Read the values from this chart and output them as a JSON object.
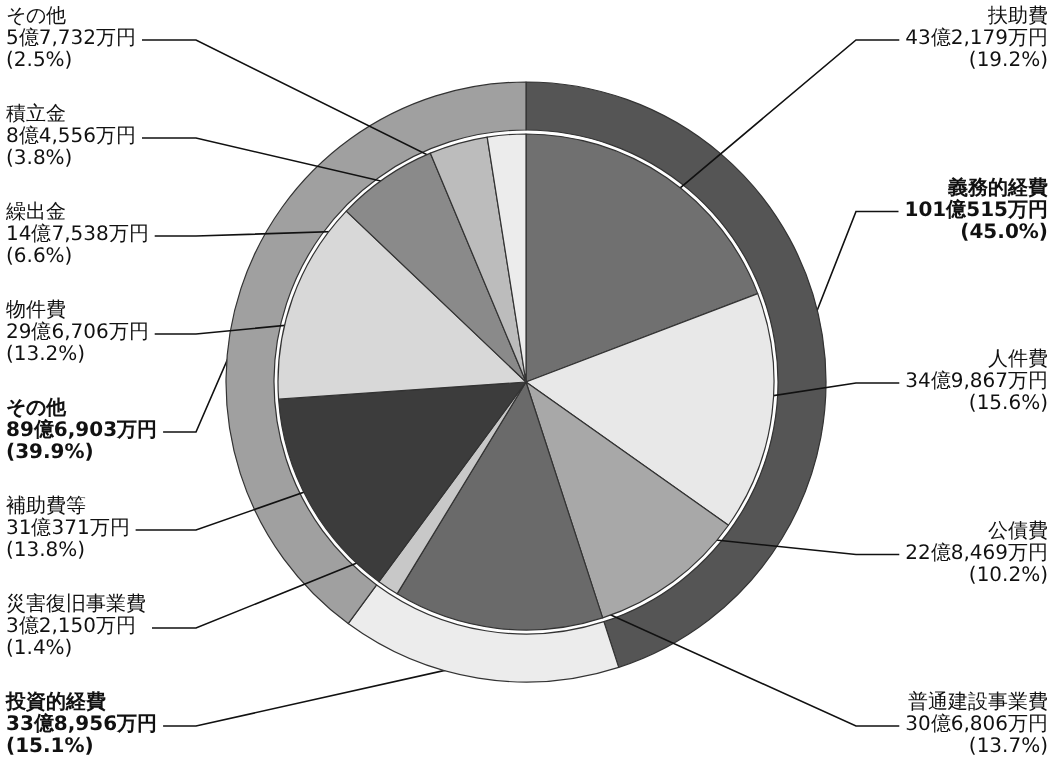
{
  "chart_data": [
    {
      "type": "donut",
      "categories": [
        "義務的経費",
        "投資的経費",
        "その他"
      ],
      "values": [
        45.0,
        15.1,
        39.9
      ],
      "colors": [
        "#555555",
        "#ececec",
        "#a0a0a0"
      ],
      "value_labels": [
        "101億515万円 (45.0%)",
        "33億8,956万円 (15.1%)",
        "89億6,903万円 (39.9%)"
      ]
    },
    {
      "type": "pie",
      "categories": [
        "扶助費",
        "人件費",
        "公債費",
        "普通建設事業費",
        "災害復旧事業費",
        "補助費等",
        "物件費",
        "繰出金",
        "積立金",
        "その他"
      ],
      "values": [
        19.2,
        15.6,
        10.2,
        13.7,
        1.4,
        13.8,
        13.2,
        6.6,
        3.8,
        2.5
      ],
      "colors": [
        "#707070",
        "#e8e8e8",
        "#a8a8a8",
        "#6a6a6a",
        "#c8c8c8",
        "#3c3c3c",
        "#d8d8d8",
        "#8a8a8a",
        "#bcbcbc",
        "#ececec"
      ],
      "value_labels": [
        "43億2,179万円 (19.2%)",
        "34億9,867万円 (15.6%)",
        "22億8,469万円 (10.2%)",
        "30億6,806万円 (13.7%)",
        "3億2,150万円 (1.4%)",
        "31億371万円 (13.8%)",
        "29億6,706万円 (13.2%)",
        "14億7,538万円 (6.6%)",
        "8億4,556万円 (3.8%)",
        "5億7,732万円 (2.5%)"
      ]
    }
  ]
}
